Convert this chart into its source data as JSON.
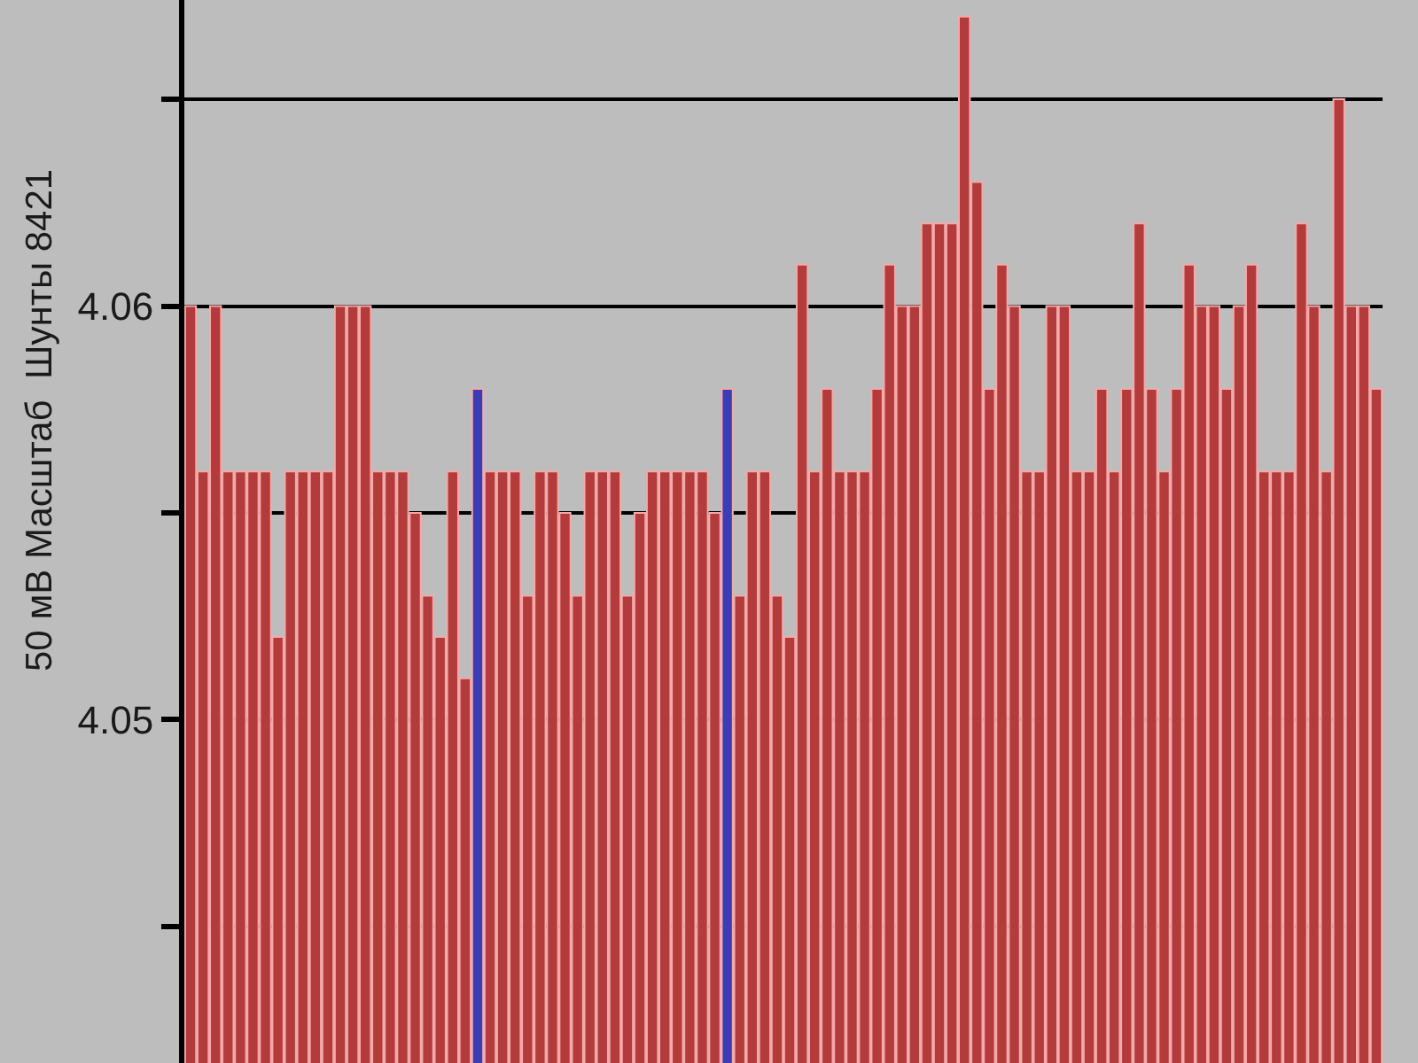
{
  "chart_data": {
    "type": "bar",
    "ylabel": "50 мВ Масштаб  Шунты 8421",
    "categories": [
      null,
      null,
      null,
      null,
      null,
      null,
      null,
      null,
      null,
      null,
      null,
      null,
      null,
      null,
      null,
      null,
      null,
      null,
      null,
      null,
      null,
      null,
      null,
      null,
      null,
      null,
      null,
      null,
      null,
      null,
      null,
      null,
      null,
      null,
      null,
      null,
      null,
      null,
      null,
      null,
      null,
      null,
      null,
      null,
      null,
      null,
      null,
      null,
      null,
      null,
      null,
      null,
      null,
      null,
      null,
      null,
      null,
      null,
      null,
      null,
      null,
      null,
      null,
      null,
      null,
      null,
      null,
      null,
      null,
      null,
      null,
      null,
      null,
      null,
      null,
      null,
      null,
      null,
      null,
      null,
      null,
      null,
      null,
      null,
      null,
      null,
      null,
      null,
      null,
      null,
      null,
      null,
      null,
      null,
      null,
      null
    ],
    "values": [
      4.06,
      4.056,
      4.06,
      4.056,
      4.056,
      4.056,
      4.056,
      4.052,
      4.056,
      4.056,
      4.056,
      4.056,
      4.06,
      4.06,
      4.06,
      4.056,
      4.056,
      4.056,
      4.055,
      4.053,
      4.052,
      4.056,
      4.051,
      4.058,
      4.056,
      4.056,
      4.056,
      4.053,
      4.056,
      4.056,
      4.055,
      4.053,
      4.056,
      4.056,
      4.056,
      4.053,
      4.055,
      4.056,
      4.056,
      4.056,
      4.056,
      4.056,
      4.055,
      4.058,
      4.053,
      4.056,
      4.056,
      4.053,
      4.052,
      4.061,
      4.056,
      4.058,
      4.056,
      4.056,
      4.056,
      4.058,
      4.061,
      4.06,
      4.06,
      4.062,
      4.062,
      4.062,
      4.067,
      4.063,
      4.058,
      4.061,
      4.06,
      4.056,
      4.056,
      4.06,
      4.06,
      4.056,
      4.056,
      4.058,
      4.056,
      4.058,
      4.062,
      4.058,
      4.056,
      4.058,
      4.061,
      4.06,
      4.06,
      4.058,
      4.06,
      4.061,
      4.056,
      4.056,
      4.056,
      4.062,
      4.06,
      4.056,
      4.065,
      4.06,
      4.06,
      4.058
    ],
    "colors": [
      "#b33b3b",
      "#b33b3b",
      "#b33b3b",
      "#b33b3b",
      "#b33b3b",
      "#b33b3b",
      "#b33b3b",
      "#b33b3b",
      "#b33b3b",
      "#b33b3b",
      "#b33b3b",
      "#b33b3b",
      "#b33b3b",
      "#b33b3b",
      "#b33b3b",
      "#b33b3b",
      "#b33b3b",
      "#b33b3b",
      "#b33b3b",
      "#b33b3b",
      "#b33b3b",
      "#b33b3b",
      "#b33b3b",
      "#3c3cb4",
      "#b33b3b",
      "#b33b3b",
      "#b33b3b",
      "#b33b3b",
      "#b33b3b",
      "#b33b3b",
      "#b33b3b",
      "#b33b3b",
      "#b33b3b",
      "#b33b3b",
      "#b33b3b",
      "#b33b3b",
      "#b33b3b",
      "#b33b3b",
      "#b33b3b",
      "#b33b3b",
      "#b33b3b",
      "#b33b3b",
      "#b33b3b",
      "#3c3cb4",
      "#b33b3b",
      "#b33b3b",
      "#b33b3b",
      "#b33b3b",
      "#b33b3b",
      "#b33b3b",
      "#b33b3b",
      "#b33b3b",
      "#b33b3b",
      "#b33b3b",
      "#b33b3b",
      "#b33b3b",
      "#b33b3b",
      "#b33b3b",
      "#b33b3b",
      "#b33b3b",
      "#b33b3b",
      "#b33b3b",
      "#b33b3b",
      "#b33b3b",
      "#b33b3b",
      "#b33b3b",
      "#b33b3b",
      "#b33b3b",
      "#b33b3b",
      "#b33b3b",
      "#b33b3b",
      "#b33b3b",
      "#b33b3b",
      "#b33b3b",
      "#b33b3b",
      "#b33b3b",
      "#b33b3b",
      "#b33b3b",
      "#b33b3b",
      "#b33b3b",
      "#b33b3b",
      "#b33b3b",
      "#b33b3b",
      "#b33b3b",
      "#b33b3b",
      "#b33b3b",
      "#b33b3b",
      "#b33b3b",
      "#b33b3b",
      "#b33b3b",
      "#b33b3b",
      "#b33b3b",
      "#b33b3b",
      "#b33b3b",
      "#b33b3b",
      "#b33b3b"
    ],
    "ylim": [
      4.0417,
      4.0674
    ],
    "yticks": [
      {
        "value": 4.045,
        "label": null
      },
      4.05,
      {
        "value": 4.055,
        "label": null
      },
      4.06,
      {
        "value": 4.065,
        "label": null
      }
    ],
    "grid": "y",
    "tick_labels": "y"
  }
}
